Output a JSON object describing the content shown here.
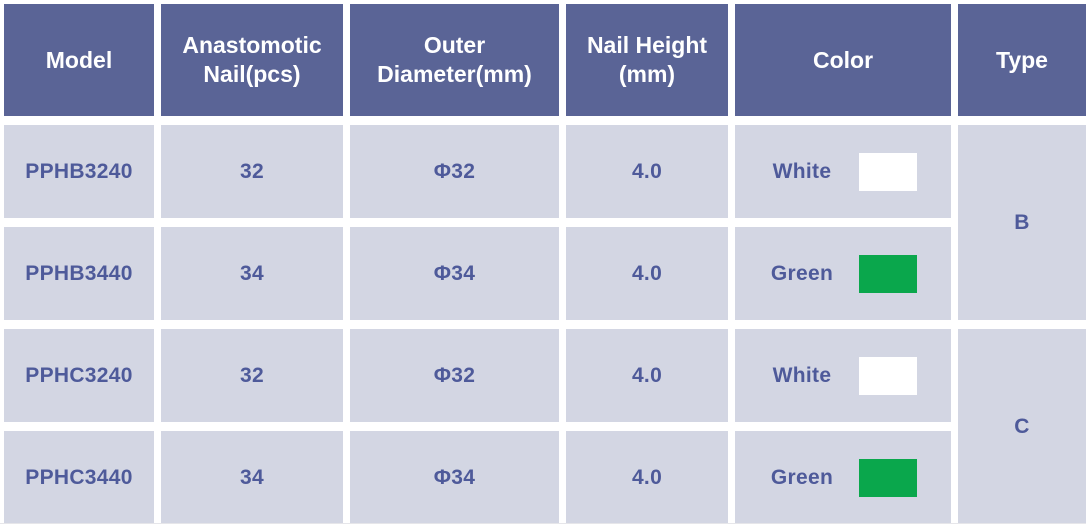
{
  "colors": {
    "header_bg": "#5a6496",
    "header_text": "#ffffff",
    "row_bg": "#d3d6e3",
    "row_text": "#4e5a9a",
    "green_swatch": "#0aa74c",
    "white_swatch": "#ffffff"
  },
  "table": {
    "headers": {
      "model": "Model",
      "anastomotic_nail": "Anastomotic Nail(pcs)",
      "outer_diameter": "Outer Diameter(mm)",
      "nail_height": "Nail Height (mm)",
      "color": "Color",
      "type": "Type"
    },
    "rows": [
      {
        "model": "PPHB3240",
        "anastomotic_nail": "32",
        "outer_diameter": "Φ32",
        "nail_height": "4.0",
        "color_label": "White",
        "color_swatch": "#ffffff"
      },
      {
        "model": "PPHB3440",
        "anastomotic_nail": "34",
        "outer_diameter": "Φ34",
        "nail_height": "4.0",
        "color_label": "Green",
        "color_swatch": "#0aa74c"
      },
      {
        "model": "PPHC3240",
        "anastomotic_nail": "32",
        "outer_diameter": "Φ32",
        "nail_height": "4.0",
        "color_label": "White",
        "color_swatch": "#ffffff"
      },
      {
        "model": "PPHC3440",
        "anastomotic_nail": "34",
        "outer_diameter": "Φ34",
        "nail_height": "4.0",
        "color_label": "Green",
        "color_swatch": "#0aa74c"
      }
    ],
    "type_groups": [
      {
        "label": "B"
      },
      {
        "label": "C"
      }
    ]
  }
}
